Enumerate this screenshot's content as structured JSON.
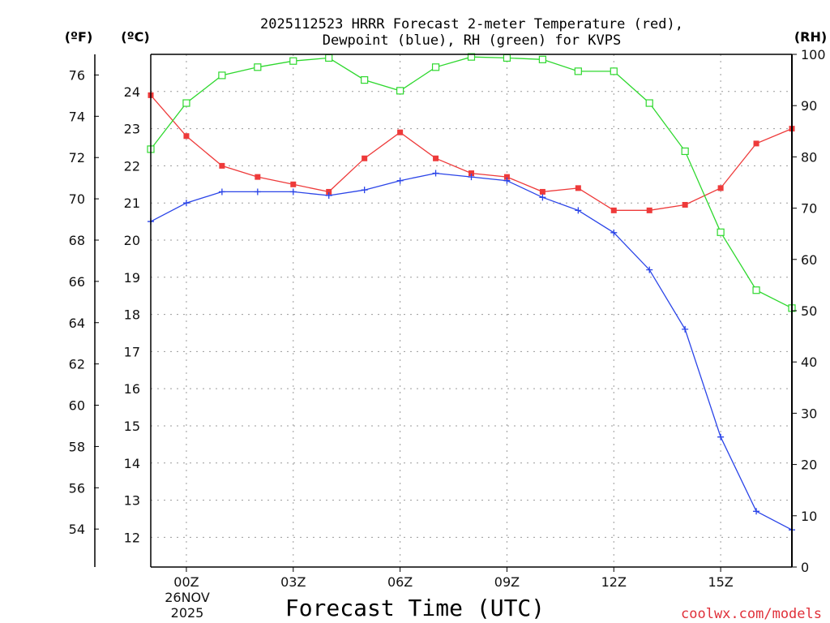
{
  "chart_data": {
    "type": "line",
    "title_line1": "2025112523 HRRR Forecast 2-meter Temperature (red),",
    "title_line2": "Dewpoint (blue), RH (green) for KVPS",
    "xlabel": "Forecast Time (UTC)",
    "credit": "coolwx.com/models",
    "units": {
      "fahrenheit": "(ºF)",
      "celsius": "(ºC)",
      "rh": "(RH)"
    },
    "date_label": [
      "26NOV",
      "2025"
    ],
    "x_hours": [
      -1,
      0,
      1,
      2,
      3,
      4,
      5,
      6,
      7,
      8,
      9,
      10,
      11,
      12,
      13,
      14,
      15,
      16,
      17
    ],
    "x_range": [
      -1,
      17
    ],
    "x_ticks": [
      {
        "hour": 0,
        "label": "00Z"
      },
      {
        "hour": 3,
        "label": "03Z"
      },
      {
        "hour": 6,
        "label": "06Z"
      },
      {
        "hour": 9,
        "label": "09Z"
      },
      {
        "hour": 12,
        "label": "12Z"
      },
      {
        "hour": 15,
        "label": "15Z"
      }
    ],
    "celsius_range": [
      11.2,
      25.0
    ],
    "celsius_ticks": [
      "12",
      "13",
      "14",
      "15",
      "16",
      "17",
      "18",
      "19",
      "20",
      "21",
      "22",
      "23",
      "24"
    ],
    "fahrenheit_ticks": [
      "54",
      "56",
      "58",
      "60",
      "62",
      "64",
      "66",
      "68",
      "70",
      "72",
      "74",
      "76"
    ],
    "rh_range": [
      0,
      100
    ],
    "rh_ticks": [
      "0",
      "10",
      "20",
      "30",
      "40",
      "50",
      "60",
      "70",
      "80",
      "90",
      "100"
    ],
    "series": [
      {
        "name": "Temperature",
        "unit": "C",
        "color": "#ee3a3a",
        "marker": "filled-square",
        "values": [
          23.9,
          22.8,
          22.0,
          21.7,
          21.5,
          21.3,
          22.2,
          22.9,
          22.2,
          21.8,
          21.7,
          21.3,
          21.4,
          20.8,
          20.8,
          20.95,
          21.4,
          22.6,
          23.0
        ]
      },
      {
        "name": "Dewpoint",
        "unit": "C",
        "color": "#2a44e8",
        "marker": "plus",
        "values": [
          20.5,
          21.0,
          21.3,
          21.3,
          21.3,
          21.2,
          21.35,
          21.6,
          21.8,
          21.7,
          21.6,
          21.15,
          20.8,
          20.2,
          19.2,
          17.6,
          14.7,
          12.7,
          12.2
        ]
      },
      {
        "name": "RH",
        "unit": "%",
        "color": "#2ed82e",
        "marker": "open-square",
        "values": [
          81.5,
          90.5,
          95.9,
          97.5,
          98.7,
          99.3,
          95.0,
          92.9,
          97.5,
          99.5,
          99.3,
          99.0,
          96.7,
          96.7,
          90.5,
          81.1,
          65.3,
          54.0,
          50.5
        ]
      }
    ]
  }
}
